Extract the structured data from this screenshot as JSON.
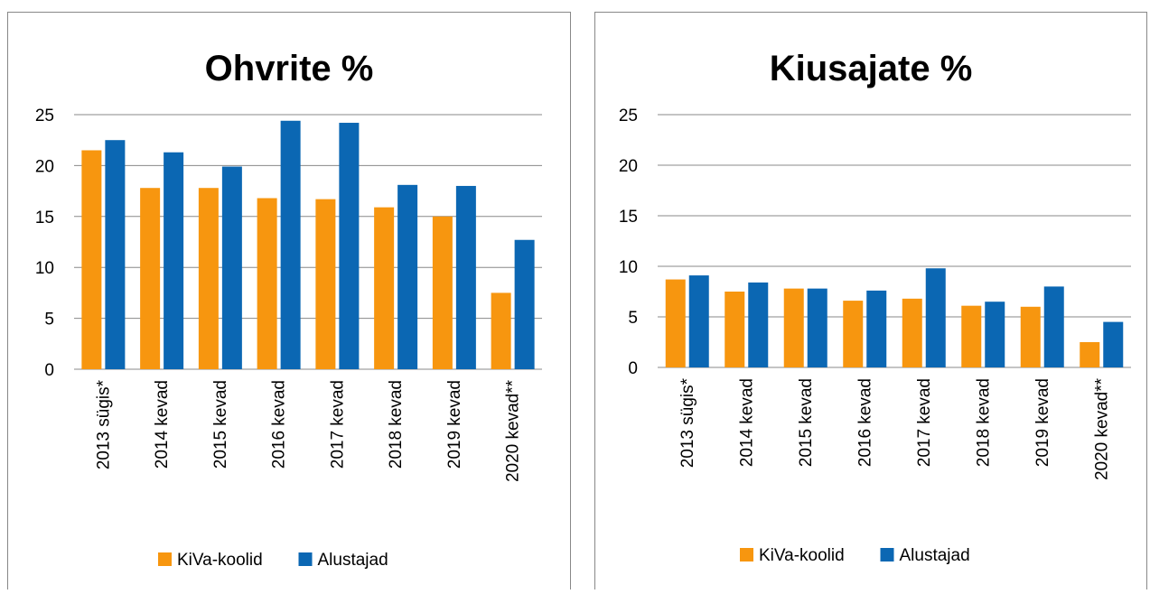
{
  "chart_data": [
    {
      "type": "bar",
      "title": "Ohvrite %",
      "categories": [
        "2013 sügis*",
        "2014 kevad",
        "2015 kevad",
        "2016 kevad",
        "2017 kevad",
        "2018 kevad",
        "2019 kevad",
        "2020 kevad**"
      ],
      "series": [
        {
          "name": "KiVa-koolid",
          "color": "#f7960f",
          "values": [
            21.5,
            17.8,
            17.8,
            16.8,
            16.7,
            15.9,
            15.0,
            7.5
          ]
        },
        {
          "name": "Alustajad",
          "color": "#0b67b3",
          "values": [
            22.5,
            21.3,
            19.9,
            24.4,
            24.2,
            18.1,
            18.0,
            12.7
          ]
        }
      ],
      "ylim": [
        0,
        25
      ],
      "yticks": [
        0,
        5,
        10,
        15,
        20,
        25
      ],
      "grid": true,
      "legend": "bottom"
    },
    {
      "type": "bar",
      "title": "Kiusajate %",
      "categories": [
        "2013 sügis*",
        "2014 kevad",
        "2015 kevad",
        "2016 kevad",
        "2017 kevad",
        "2018 kevad",
        "2019 kevad",
        "2020 kevad**"
      ],
      "series": [
        {
          "name": "KiVa-koolid",
          "color": "#f7960f",
          "values": [
            8.7,
            7.5,
            7.8,
            6.6,
            6.8,
            6.1,
            6.0,
            2.5
          ]
        },
        {
          "name": "Alustajad",
          "color": "#0b67b3",
          "values": [
            9.1,
            8.4,
            7.8,
            7.6,
            9.8,
            6.5,
            8.0,
            4.5
          ]
        }
      ],
      "ylim": [
        0,
        25
      ],
      "yticks": [
        0,
        5,
        10,
        15,
        20,
        25
      ],
      "grid": true,
      "legend": "bottom"
    }
  ]
}
